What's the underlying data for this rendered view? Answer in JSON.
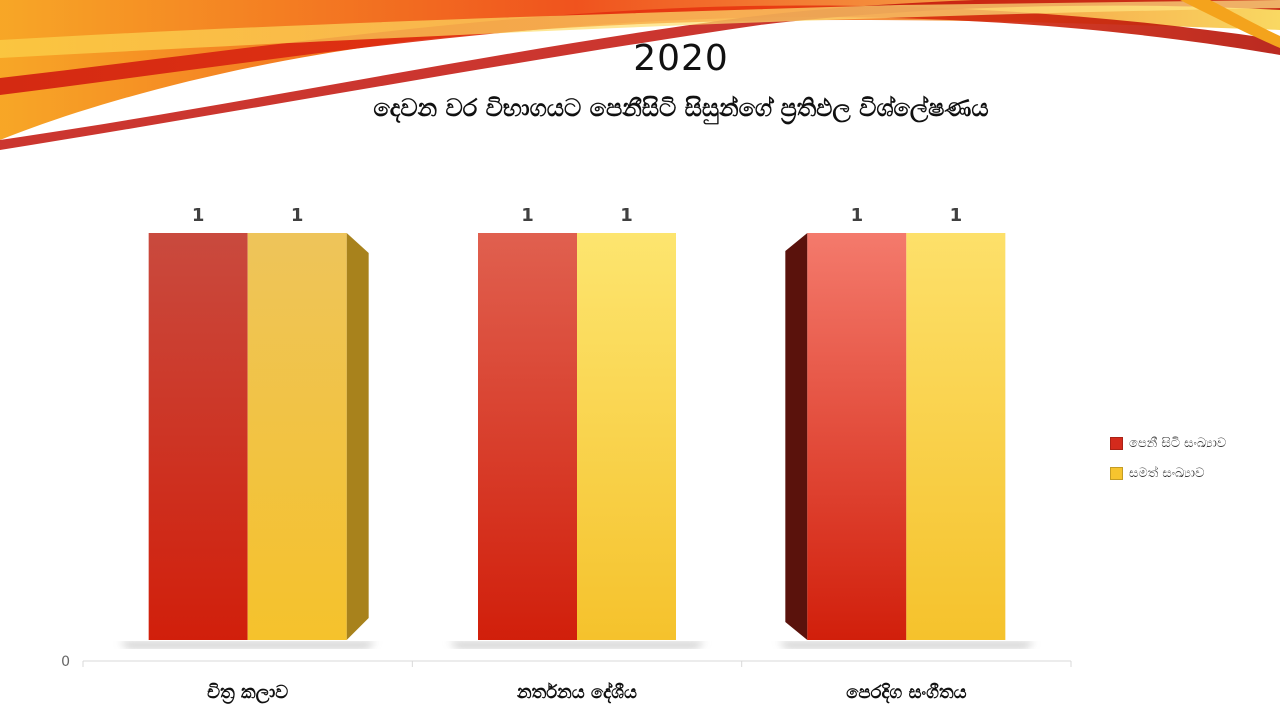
{
  "slide": {
    "title_year": "2020",
    "title_sub": "දෙවන වර විභාගයට පෙනීසිටි සිසුන්ගේ ප්‍රතිඵල විශ්ලේෂණය"
  },
  "chart_data": {
    "type": "bar",
    "categories": [
      "චිත්‍ර කලාව",
      "නර්තනය දේශීය",
      "පෙරදිග සංගීතය"
    ],
    "series": [
      {
        "name": "පෙනී සිටි සංඛ්‍යාව",
        "values": [
          1,
          1,
          1
        ],
        "color": "#d42a1c"
      },
      {
        "name": "සමත් සංඛ්‍යාව",
        "values": [
          1,
          1,
          1
        ],
        "color": "#f6c42e"
      }
    ],
    "ylim": [
      0,
      1
    ],
    "yticks": [
      0
    ],
    "data_labels": true,
    "legend_position": "right",
    "grid": false
  }
}
